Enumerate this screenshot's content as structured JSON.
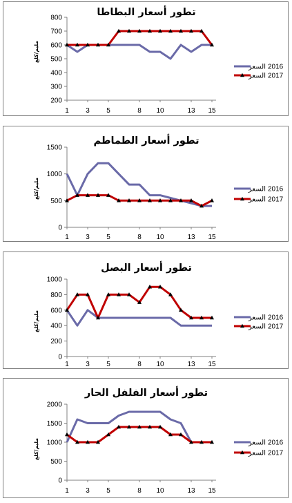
{
  "chart_data": [
    {
      "type": "line",
      "title": "تطور أسعار البطاطا",
      "ylabel": "مليم/كلغ",
      "ylim": [
        200,
        800
      ],
      "yticks": [
        200,
        300,
        400,
        500,
        600,
        700,
        800
      ],
      "x": [
        1,
        2,
        3,
        4,
        5,
        6,
        7,
        8,
        9,
        10,
        11,
        12,
        13,
        14,
        15
      ],
      "xtick_labels": [
        "1",
        "3",
        "5",
        "8",
        "10",
        "13",
        "15"
      ],
      "xtick_positions": [
        1,
        3,
        5,
        8,
        10,
        13,
        15
      ],
      "legend_position": "right",
      "series": [
        {
          "name": "السعر",
          "year": "2016",
          "color": "#6a6aa8",
          "marker": "none",
          "values": [
            600,
            550,
            600,
            600,
            600,
            600,
            600,
            600,
            550,
            550,
            500,
            600,
            550,
            600,
            600
          ]
        },
        {
          "name": "السعر",
          "year": "2017",
          "color": "#c00000",
          "marker": "triangle",
          "values": [
            600,
            600,
            600,
            600,
            600,
            700,
            700,
            700,
            700,
            700,
            700,
            700,
            700,
            700,
            600
          ]
        }
      ]
    },
    {
      "type": "line",
      "title": "تطور أسعار الطماطم",
      "ylabel": "مليم/كلغ",
      "ylim": [
        0,
        1500
      ],
      "yticks": [
        0,
        500,
        1000,
        1500
      ],
      "x": [
        1,
        2,
        3,
        4,
        5,
        6,
        7,
        8,
        9,
        10,
        11,
        12,
        13,
        14,
        15
      ],
      "xtick_labels": [
        "1",
        "3",
        "5",
        "8",
        "10",
        "13",
        "15"
      ],
      "xtick_positions": [
        1,
        3,
        5,
        8,
        10,
        13,
        15
      ],
      "legend_position": "right",
      "series": [
        {
          "name": "السعر",
          "year": "2016",
          "color": "#6a6aa8",
          "marker": "none",
          "values": [
            1000,
            600,
            1000,
            1200,
            1200,
            1000,
            800,
            800,
            600,
            600,
            550,
            500,
            450,
            400,
            400
          ]
        },
        {
          "name": "السعر",
          "year": "2017",
          "color": "#c00000",
          "marker": "triangle",
          "values": [
            500,
            600,
            600,
            600,
            600,
            500,
            500,
            500,
            500,
            500,
            500,
            500,
            500,
            400,
            500
          ]
        }
      ]
    },
    {
      "type": "line",
      "title": "تطور أسعار البصل",
      "ylabel": "مليم/كلغ",
      "ylim": [
        0,
        1000
      ],
      "yticks": [
        0,
        200,
        400,
        600,
        800,
        1000
      ],
      "x": [
        1,
        2,
        3,
        4,
        5,
        6,
        7,
        8,
        9,
        10,
        11,
        12,
        13,
        14,
        15
      ],
      "xtick_labels": [
        "1",
        "3",
        "5",
        "8",
        "10",
        "13",
        "15"
      ],
      "xtick_positions": [
        1,
        3,
        5,
        8,
        10,
        13,
        15
      ],
      "legend_position": "right",
      "series": [
        {
          "name": "السعر",
          "year": "2016",
          "color": "#6a6aa8",
          "marker": "none",
          "values": [
            600,
            400,
            600,
            500,
            500,
            500,
            500,
            500,
            500,
            500,
            500,
            400,
            400,
            400,
            400
          ]
        },
        {
          "name": "السعر",
          "year": "2017",
          "color": "#c00000",
          "marker": "triangle",
          "values": [
            600,
            800,
            800,
            500,
            800,
            800,
            800,
            700,
            900,
            900,
            800,
            600,
            500,
            500,
            500
          ]
        }
      ]
    },
    {
      "type": "line",
      "title": "تطور أسعار الفلفل الحار",
      "ylabel": "مليم/كلغ",
      "ylim": [
        0,
        2000
      ],
      "yticks": [
        0,
        500,
        1000,
        1500,
        2000
      ],
      "x": [
        1,
        2,
        3,
        4,
        5,
        6,
        7,
        8,
        9,
        10,
        11,
        12,
        13,
        14,
        15
      ],
      "xtick_labels": [
        "1",
        "3",
        "5",
        "8",
        "10",
        "13",
        "15"
      ],
      "xtick_positions": [
        1,
        3,
        5,
        8,
        10,
        13,
        15
      ],
      "legend_position": "right",
      "series": [
        {
          "name": "السعر",
          "year": "2016",
          "color": "#6a6aa8",
          "marker": "none",
          "values": [
            1000,
            1600,
            1500,
            1500,
            1500,
            1700,
            1800,
            1800,
            1800,
            1800,
            1600,
            1500,
            1000,
            1000,
            1000
          ]
        },
        {
          "name": "السعر",
          "year": "2017",
          "color": "#c00000",
          "marker": "triangle",
          "values": [
            1200,
            1000,
            1000,
            1000,
            1200,
            1400,
            1400,
            1400,
            1400,
            1400,
            1200,
            1200,
            1000,
            1000,
            1000
          ]
        }
      ]
    }
  ]
}
